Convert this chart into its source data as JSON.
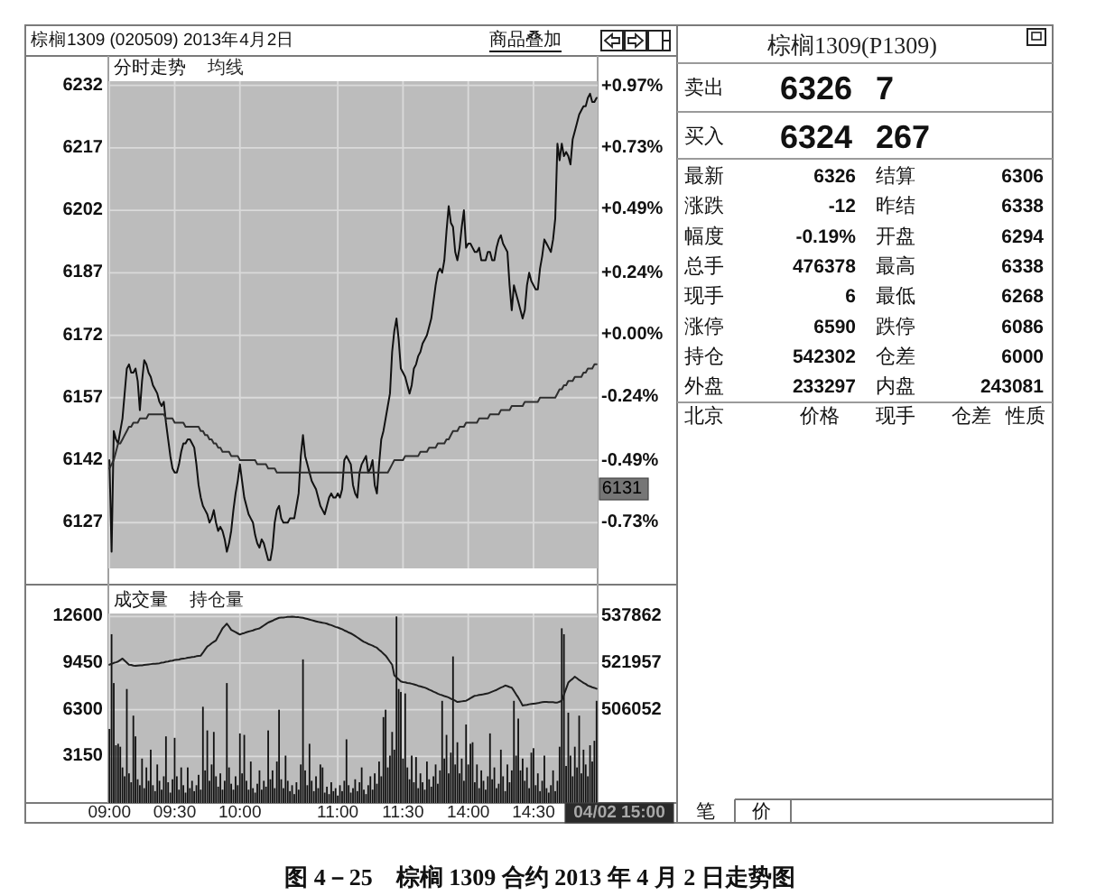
{
  "chart_data": [
    {
      "type": "line",
      "title": "棕榈1309 (020509) 2013年4月2日",
      "categories": [
        null,
        null,
        null,
        null,
        null,
        null,
        null,
        null,
        null,
        null,
        null,
        null,
        null,
        null,
        null,
        null,
        null,
        null,
        null,
        null,
        null,
        null,
        null,
        null,
        null,
        null,
        null,
        null,
        null,
        null,
        null,
        null,
        null,
        null,
        null,
        null,
        null,
        null,
        null,
        null,
        null,
        null,
        null,
        null,
        null,
        null,
        null,
        null,
        null,
        null,
        null,
        null,
        null,
        null,
        null,
        null,
        null,
        null,
        null,
        null,
        null,
        null,
        null,
        null,
        null,
        null,
        null,
        null,
        null,
        null,
        null,
        null,
        null,
        null,
        null,
        null,
        null,
        null,
        null,
        null,
        null,
        null,
        null,
        null,
        null,
        null,
        null,
        null,
        null,
        null,
        null,
        null,
        null,
        null,
        null,
        null,
        null,
        null,
        null,
        null,
        null,
        null,
        null,
        null,
        null,
        null,
        null,
        null,
        null,
        null,
        null,
        null,
        null,
        null,
        null,
        null,
        null,
        null,
        null,
        null,
        null,
        null,
        null,
        null,
        null,
        null,
        null,
        null,
        null,
        null,
        null,
        null,
        null,
        null,
        null,
        null,
        null,
        null,
        null,
        null,
        null,
        null,
        null,
        null,
        null,
        null,
        null,
        null,
        null,
        null,
        null,
        null,
        null,
        null,
        null,
        null,
        null,
        null,
        null,
        null,
        null,
        null,
        null,
        null,
        null,
        null,
        null,
        null,
        null,
        null,
        null,
        null,
        null,
        null,
        null,
        null,
        null,
        null,
        null,
        null,
        null,
        null,
        null,
        null,
        null,
        null,
        null,
        null,
        null,
        null,
        null,
        null,
        null,
        null,
        null,
        null,
        null,
        null,
        null,
        null,
        null,
        null,
        null,
        null,
        null,
        null,
        null,
        null,
        null,
        null,
        null,
        null,
        null,
        null,
        null,
        null,
        null,
        null,
        null,
        null,
        null,
        null,
        null,
        null,
        null
      ],
      "ylim": [
        6116,
        6233
      ],
      "yticks": [
        6127,
        6142,
        6157,
        6172,
        6187,
        6202,
        6217,
        6232
      ],
      "y2lim": [
        -0.91,
        0.99
      ],
      "y2ticks": [
        {
          "value": -0.73,
          "label": "-0.73%"
        },
        {
          "value": -0.49,
          "label": "-0.49%"
        },
        {
          "value": -0.24,
          "label": "-0.24%"
        },
        {
          "value": 0,
          "label": "+0.00%"
        },
        {
          "value": 0.24,
          "label": "+0.24%"
        },
        {
          "value": 0.49,
          "label": "+0.49%"
        },
        {
          "value": 0.73,
          "label": "+0.73%"
        },
        {
          "value": 0.97,
          "label": "+0.97%"
        }
      ],
      "tick_labels": "y",
      "grid": true,
      "legend": "top left",
      "series": [
        {
          "name": "分时走势",
          "color": "#111111",
          "values": [
            6142,
            6120,
            6149,
            6147,
            6146,
            6149,
            6152,
            6158,
            6164,
            6165,
            6163,
            6163,
            6164,
            6161,
            6154,
            6161,
            6166,
            6165,
            6163,
            6162,
            6160,
            6159,
            6158,
            6156,
            6155,
            6156,
            6151,
            6147,
            6143,
            6140,
            6139,
            6139,
            6141,
            6144,
            6146,
            6146,
            6147,
            6147,
            6146,
            6145,
            6141,
            6136,
            6133,
            6131,
            6130,
            6129,
            6127,
            6128,
            6130,
            6127,
            6125,
            6126,
            6125,
            6123,
            6120,
            6122,
            6125,
            6130,
            6134,
            6137,
            6141,
            6137,
            6133,
            6131,
            6129,
            6128,
            6127,
            6124,
            6122,
            6121,
            6123,
            6122,
            6120,
            6118,
            6118,
            6121,
            6127,
            6130,
            6131,
            6128,
            6127,
            6127,
            6127,
            6128,
            6128,
            6128,
            6131,
            6134,
            6143,
            6148,
            6143,
            6141,
            6139,
            6137,
            6136,
            6135,
            6133,
            6131,
            6130,
            6129,
            6131,
            6133,
            6134,
            6133,
            6133,
            6134,
            6133,
            6135,
            6142,
            6143,
            6142,
            6141,
            6136,
            6134,
            6133,
            6139,
            6141,
            6142,
            6143,
            6139,
            6140,
            6142,
            6136,
            6134,
            6141,
            6147,
            6149,
            6152,
            6155,
            6158,
            6168,
            6173,
            6176,
            6171,
            6164,
            6163,
            6162,
            6160,
            6158,
            6160,
            6164,
            6165,
            6167,
            6168,
            6170,
            6171,
            6172,
            6174,
            6176,
            6180,
            6184,
            6187,
            6188,
            6187,
            6190,
            6197,
            6203,
            6199,
            6198,
            6192,
            6190,
            6193,
            6198,
            6202,
            6193,
            6194,
            6194,
            6193,
            6192,
            6192,
            6193,
            6190,
            6190,
            6190,
            6192,
            6192,
            6190,
            6190,
            6193,
            6195,
            6196,
            6194,
            6193,
            6192,
            6184,
            6178,
            6184,
            6182,
            6180,
            6178,
            6176,
            6178,
            6184,
            6187,
            6185,
            6184,
            6183,
            6183,
            6188,
            6191,
            6195,
            6194,
            6193,
            6192,
            6195,
            6200,
            6218,
            6214,
            6218,
            6215,
            6216,
            6215,
            6213,
            6219,
            6221,
            6223,
            6225,
            6226,
            6227,
            6227,
            6229,
            6230,
            6228,
            6228,
            6229
          ]
        },
        {
          "name": "均线",
          "color": "#2e2e2e",
          "values": [
            6140,
            6141,
            6142,
            6144,
            6146,
            6146,
            6147,
            6148,
            6149,
            6150,
            6150,
            6151,
            6151,
            6151,
            6152,
            6152,
            6152,
            6152,
            6153,
            6153,
            6153,
            6153,
            6153,
            6153,
            6153,
            6153,
            6152,
            6152,
            6152,
            6152,
            6151,
            6151,
            6151,
            6151,
            6151,
            6150,
            6150,
            6150,
            6150,
            6150,
            6150,
            6150,
            6149,
            6149,
            6148,
            6148,
            6147,
            6147,
            6146,
            6146,
            6145,
            6145,
            6144,
            6144,
            6144,
            6144,
            6143,
            6143,
            6143,
            6143,
            6142,
            6142,
            6142,
            6142,
            6142,
            6142,
            6142,
            6142,
            6141,
            6141,
            6141,
            6141,
            6141,
            6140,
            6140,
            6140,
            6140,
            6139,
            6139,
            6139,
            6139,
            6139,
            6139,
            6139,
            6139,
            6139,
            6139,
            6139,
            6139,
            6139,
            6139,
            6139,
            6139,
            6139,
            6139,
            6139,
            6139,
            6139,
            6139,
            6139,
            6139,
            6139,
            6139,
            6139,
            6139,
            6139,
            6139,
            6139,
            6139,
            6139,
            6139,
            6139,
            6139,
            6139,
            6139,
            6139,
            6139,
            6139,
            6139,
            6139,
            6139,
            6139,
            6139,
            6139,
            6139,
            6139,
            6139,
            6139,
            6139,
            6140,
            6141,
            6142,
            6142,
            6142,
            6142,
            6142,
            6143,
            6143,
            6143,
            6143,
            6143,
            6143,
            6143,
            6144,
            6144,
            6144,
            6144,
            6145,
            6145,
            6145,
            6145,
            6146,
            6146,
            6146,
            6146,
            6147,
            6147,
            6148,
            6149,
            6149,
            6149,
            6150,
            6150,
            6150,
            6151,
            6151,
            6151,
            6151,
            6151,
            6151,
            6152,
            6152,
            6152,
            6152,
            6152,
            6153,
            6153,
            6153,
            6153,
            6153,
            6154,
            6154,
            6154,
            6154,
            6154,
            6155,
            6155,
            6155,
            6155,
            6155,
            6155,
            6156,
            6156,
            6156,
            6156,
            6156,
            6156,
            6156,
            6157,
            6157,
            6157,
            6157,
            6157,
            6157,
            6157,
            6157,
            6158,
            6159,
            6159,
            6160,
            6160,
            6161,
            6161,
            6161,
            6162,
            6162,
            6162,
            6162,
            6163,
            6163,
            6164,
            6164,
            6164,
            6165,
            6165
          ]
        }
      ],
      "annotations": [
        "商品叠加",
        "6131",
        "图 4－25　棕榈 1309 合约 2013 年 4 月 2 日走势图"
      ]
    },
    {
      "type": "bar",
      "categories": [
        "09:00",
        null,
        null,
        null,
        null,
        null,
        null,
        null,
        null,
        null,
        null,
        null,
        null,
        null,
        null,
        null,
        null,
        null,
        null,
        null,
        null,
        null,
        null,
        null,
        null,
        null,
        null,
        null,
        null,
        null,
        "09:30",
        null,
        null,
        null,
        null,
        null,
        null,
        null,
        null,
        null,
        null,
        null,
        null,
        null,
        null,
        null,
        null,
        null,
        null,
        null,
        null,
        null,
        null,
        null,
        null,
        null,
        null,
        null,
        null,
        null,
        "10:00",
        null,
        null,
        null,
        null,
        null,
        null,
        null,
        null,
        null,
        null,
        null,
        null,
        null,
        null,
        null,
        null,
        null,
        null,
        null,
        null,
        null,
        null,
        null,
        null,
        null,
        null,
        null,
        null,
        null,
        null,
        null,
        null,
        null,
        null,
        null,
        null,
        null,
        null,
        null,
        null,
        null,
        null,
        null,
        null,
        "11:00",
        null,
        null,
        null,
        null,
        null,
        null,
        null,
        null,
        null,
        null,
        null,
        null,
        null,
        null,
        null,
        null,
        null,
        null,
        null,
        null,
        null,
        null,
        null,
        null,
        null,
        null,
        null,
        null,
        null,
        "11:30",
        null,
        null,
        null,
        null,
        null,
        null,
        null,
        null,
        null,
        null,
        null,
        null,
        null,
        null,
        null,
        null,
        null,
        null,
        null,
        null,
        null,
        null,
        null,
        null,
        null,
        null,
        null,
        null,
        null,
        "14:00",
        null,
        null,
        null,
        null,
        null,
        null,
        null,
        null,
        null,
        null,
        null,
        null,
        null,
        null,
        null,
        null,
        null,
        null,
        null,
        null,
        null,
        null,
        null,
        null,
        null,
        null,
        null,
        null,
        null,
        "14:30",
        null,
        null,
        null,
        null,
        null,
        null,
        null,
        null,
        null,
        null,
        null,
        null,
        null,
        null,
        null,
        null,
        null,
        null,
        null,
        null,
        null,
        null,
        null,
        null,
        null,
        null,
        null,
        null,
        null
      ],
      "ylim": [
        0,
        12800
      ],
      "yticks": [
        3150,
        6300,
        9450,
        12600
      ],
      "y2lim": [
        474240,
        538870
      ],
      "y2ticks": [
        506052,
        521957,
        537862
      ],
      "grid": true,
      "legend": "top left",
      "series": [
        {
          "name": "成交量",
          "color": "#111111",
          "values": [
            5000,
            11400,
            8100,
            3900,
            4000,
            3800,
            2400,
            1800,
            7700,
            2000,
            1400,
            5900,
            4500,
            1600,
            1200,
            3000,
            1000,
            2400,
            1500,
            3600,
            1200,
            800,
            2600,
            1500,
            900,
            1800,
            4500,
            1400,
            700,
            1600,
            4400,
            1800,
            900,
            2400,
            1200,
            700,
            2400,
            1000,
            1500,
            800,
            1200,
            1900,
            900,
            6500,
            2200,
            4900,
            1500,
            2600,
            4800,
            1800,
            1100,
            2000,
            900,
            1500,
            8100,
            2400,
            1300,
            900,
            1800,
            1200,
            4700,
            2000,
            4600,
            1500,
            900,
            2800,
            1000,
            700,
            1300,
            2200,
            900,
            1500,
            1100,
            4900,
            1600,
            2200,
            1000,
            2800,
            6300,
            1600,
            1000,
            3200,
            1500,
            800,
            1200,
            600,
            1400,
            900,
            2600,
            9700,
            2200,
            1200,
            4000,
            1500,
            800,
            1800,
            1000,
            2600,
            2400,
            700,
            1100,
            600,
            1400,
            800,
            1000,
            500,
            1200,
            800,
            1500,
            4300,
            1200,
            700,
            1000,
            1600,
            800,
            1400,
            2400,
            900,
            600,
            1200,
            1800,
            900,
            2000,
            1300,
            2800,
            1800,
            5800,
            6300,
            2400,
            3200,
            4800,
            3600,
            12600,
            7700,
            7500,
            3000,
            7400,
            2400,
            1600,
            3200,
            1400,
            3100,
            1000,
            2000,
            1400,
            900,
            2800,
            1600,
            1100,
            1800,
            2600,
            1300,
            2200,
            6900,
            3000,
            4600,
            2000,
            3400,
            9900,
            2600,
            4100,
            2000,
            3000,
            1500,
            5300,
            2600,
            4000,
            4100,
            1400,
            2600,
            1000,
            2200,
            1500,
            900,
            1800,
            4700,
            1600,
            2400,
            1000,
            1300,
            3600,
            1800,
            800,
            2600,
            1400,
            2200,
            6900,
            3200,
            5700,
            2200,
            3000,
            1500,
            2400,
            1000,
            3400,
            3700,
            1200,
            2000,
            800,
            1500,
            3200,
            1000,
            700,
            1200,
            2200,
            800,
            1500,
            3800,
            11800,
            11400,
            2500,
            6100,
            3200,
            1800,
            3800,
            2400,
            5900,
            2000,
            3600,
            2600,
            1800,
            3900,
            2800,
            4200,
            6900
          ]
        },
        {
          "name": "持仓量",
          "type": "line",
          "axis": "y2",
          "color": "#1e1e1e",
          "values": [
            521400,
            521700,
            522000,
            522200,
            522500,
            523000,
            523500,
            522800,
            522100,
            521400,
            521300,
            521100,
            521000,
            521100,
            521200,
            521200,
            521300,
            521400,
            521500,
            521600,
            521700,
            521700,
            521800,
            521900,
            522100,
            522200,
            522400,
            522500,
            522700,
            522800,
            523000,
            523100,
            523200,
            523400,
            523500,
            523600,
            523800,
            523900,
            524000,
            524100,
            524300,
            524400,
            524500,
            525500,
            526600,
            527600,
            528100,
            528700,
            529200,
            529700,
            531100,
            532400,
            533800,
            534600,
            535400,
            534400,
            533300,
            532900,
            532500,
            532100,
            531700,
            532000,
            532200,
            532500,
            532700,
            532900,
            533100,
            533400,
            533600,
            533800,
            534300,
            534800,
            535300,
            535800,
            536100,
            536400,
            536800,
            537100,
            537400,
            537500,
            537500,
            537600,
            537700,
            537700,
            537800,
            537700,
            537600,
            537600,
            537500,
            537400,
            537200,
            537000,
            536800,
            536600,
            536400,
            536200,
            536000,
            535900,
            535700,
            535600,
            535400,
            535100,
            534900,
            534600,
            534300,
            534100,
            533800,
            533500,
            533100,
            532800,
            532400,
            532100,
            531700,
            531200,
            530700,
            530200,
            529700,
            529200,
            528900,
            528500,
            528200,
            527900,
            527500,
            527200,
            526500,
            525900,
            525200,
            524500,
            523500,
            522400,
            521400,
            517800,
            517100,
            516400,
            515700,
            515500,
            515400,
            515200,
            515100,
            514900,
            514700,
            514500,
            514200,
            514000,
            513800,
            513600,
            513300,
            512900,
            512600,
            512200,
            511900,
            511500,
            511200,
            511000,
            510700,
            510500,
            510200,
            509800,
            509500,
            509100,
            508700,
            508800,
            508900,
            509000,
            509100,
            509500,
            510000,
            510400,
            510800,
            510900,
            511100,
            511200,
            511300,
            511500,
            511600,
            511900,
            512200,
            512500,
            512800,
            513200,
            513600,
            513900,
            514300,
            514100,
            513800,
            513600,
            512500,
            511300,
            510200,
            508900,
            507500,
            507600,
            507700,
            507900,
            508000,
            508100,
            508200,
            508300,
            508500,
            508600,
            508700,
            508700,
            508600,
            508600,
            508600,
            508500,
            508500,
            508800,
            509100,
            511200,
            513200,
            515300,
            516000,
            516600,
            517300,
            516800,
            516200,
            515700,
            515200,
            514800,
            514300,
            514000,
            513700,
            513500,
            513200
          ]
        }
      ],
      "annotations": [
        "04/02 15:00"
      ]
    },
    {
      "type": "other",
      "title": "棕榈1309(P1309)",
      "annotations": [
        "卖出",
        "6326",
        "7",
        "买入",
        "6324",
        "267",
        "最新",
        "6326",
        "结算",
        "6306",
        "涨跌",
        "-12",
        "昨结",
        "6338",
        "幅度",
        "-0.19%",
        "开盘",
        "6294",
        "总手",
        "476378",
        "最高",
        "6338",
        "现手",
        "6",
        "最低",
        "6268",
        "涨停",
        "6590",
        "跌停",
        "6086",
        "持仓",
        "542302",
        "仓差",
        "6000",
        "外盘",
        "233297",
        "内盘",
        "243081",
        "北京",
        "价格",
        "现手",
        "仓差",
        "性质",
        "笔",
        "价"
      ]
    }
  ]
}
